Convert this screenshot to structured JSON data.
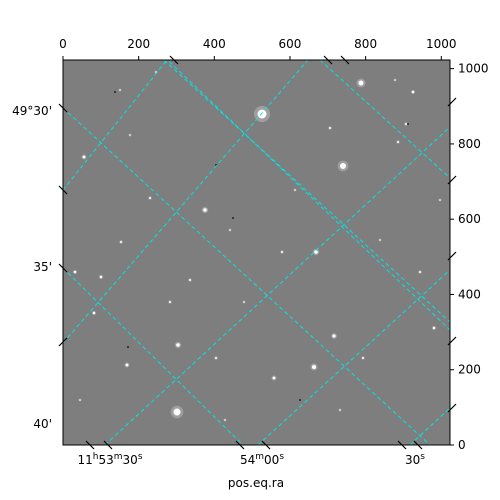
{
  "chart_data": {
    "type": "image",
    "image_kind": "astronomical sky image with WCS overlay",
    "colormap": "grayscale",
    "pixel_axes": {
      "x": {
        "range": [
          0,
          1023
        ],
        "ticks": [
          0,
          200,
          400,
          600,
          800,
          1000
        ],
        "tick_labels": [
          "0",
          "200",
          "400",
          "600",
          "800",
          "1000"
        ],
        "position": "top"
      },
      "y": {
        "range": [
          0,
          1023
        ],
        "ticks": [
          0,
          200,
          400,
          600,
          800,
          1000
        ],
        "tick_labels": [
          "0",
          "200",
          "400",
          "600",
          "800",
          "1000"
        ],
        "position": "right"
      }
    },
    "world_axes": {
      "ra": {
        "label": "pos.eq.ra",
        "position": "bottom",
        "tick_labels": [
          {
            "label": "11h53m30s",
            "main": "11",
            "unit1": "h",
            "mid": "53",
            "unit2": "m",
            "end": "30",
            "unit3": "s"
          },
          {
            "label": "54m00s",
            "main": "54",
            "unit1": "m",
            "mid": "00",
            "unit2": "s",
            "end": "",
            "unit3": ""
          },
          {
            "label": "30s",
            "main": "30",
            "unit1": "s",
            "mid": "",
            "unit2": "",
            "end": "",
            "unit3": ""
          }
        ]
      },
      "dec": {
        "label": "",
        "position": "left",
        "tick_labels": [
          "49°30'",
          "35'",
          "40'"
        ]
      }
    },
    "grid": {
      "on": true,
      "color": "#00ffff",
      "style": "dashed"
    },
    "colors": {
      "background_gray": "#7f7f7f",
      "grid": "#00e5e5"
    }
  }
}
